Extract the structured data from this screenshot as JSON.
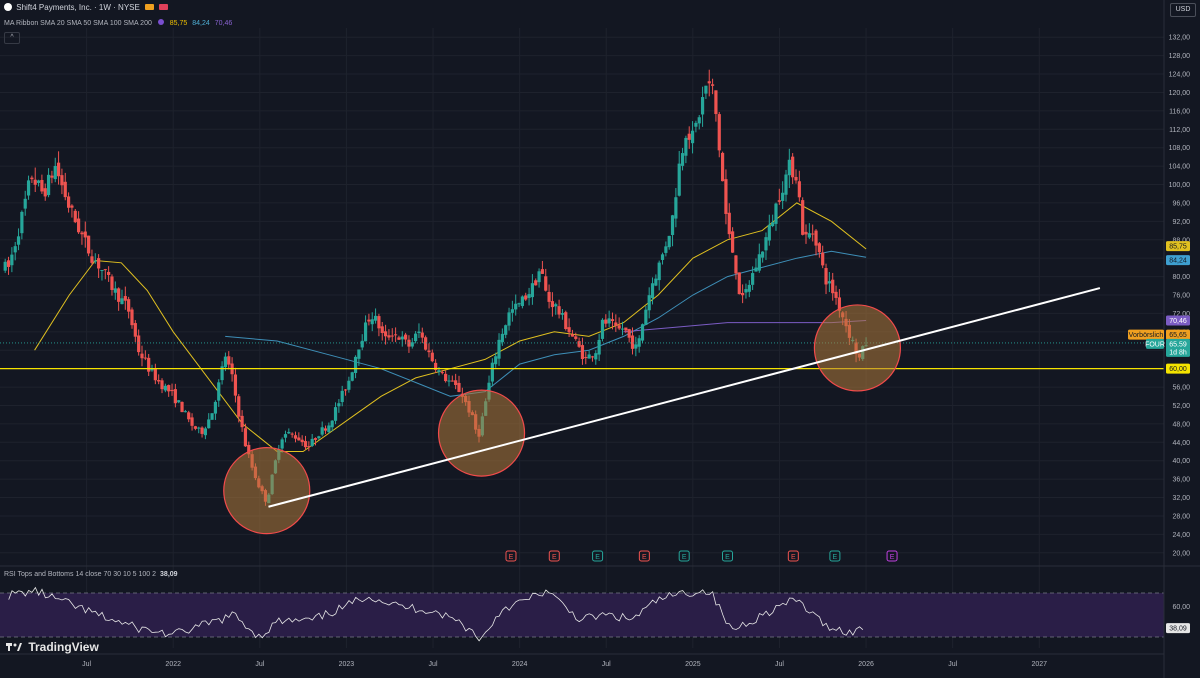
{
  "header": {
    "title": "Shift4 Payments, Inc. · 1W · NYSE",
    "ma_label": "MA Ribbon SMA 20 SMA 50 SMA 100 SMA 200",
    "ma_values": [
      "85,75",
      "84,24",
      "70,46"
    ],
    "collapse_glyph": "^",
    "currency": "USD"
  },
  "rsi": {
    "title": "RSI Tops and Bottoms 14 close 70 30 10 5 100 2",
    "value": "38,09",
    "axis_labels": [
      "60,00",
      "38,09"
    ]
  },
  "brand": {
    "name": "TradingView"
  },
  "colors": {
    "up": "#26a69a",
    "down": "#ef5350",
    "sma_yellow": "#e0c020",
    "sma_blue": "#3e8fb8",
    "sma_purple": "#7b5cc4",
    "support": "#f5e400",
    "trendline": "#ffffff",
    "circle_fill": "#b07a3a",
    "circle_stroke": "#f24b4b",
    "rsi_band": "#2a1e47"
  },
  "chart_data": {
    "type": "candlestick",
    "title": "Shift4 Payments, Inc. · 1W · NYSE",
    "y_ticks": [
      "20,00",
      "24,00",
      "28,00",
      "32,00",
      "36,00",
      "40,00",
      "44,00",
      "48,00",
      "52,00",
      "56,00",
      "60,00",
      "64,00",
      "68,00",
      "72,00",
      "76,00",
      "80,00",
      "84,00",
      "88,00",
      "92,00",
      "96,00",
      "100,00",
      "104,00",
      "108,00",
      "112,00",
      "116,00",
      "120,00",
      "124,00",
      "128,00",
      "132,00"
    ],
    "ylim": [
      18,
      134
    ],
    "x_ticks": [
      {
        "label": "Jul",
        "t": 2021.5
      },
      {
        "label": "2022",
        "t": 2022.0
      },
      {
        "label": "Jul",
        "t": 2022.5
      },
      {
        "label": "2023",
        "t": 2023.0
      },
      {
        "label": "Jul",
        "t": 2023.5
      },
      {
        "label": "2024",
        "t": 2024.0
      },
      {
        "label": "Jul",
        "t": 2024.5
      },
      {
        "label": "2025",
        "t": 2025.0
      },
      {
        "label": "Jul",
        "t": 2025.5
      },
      {
        "label": "2026",
        "t": 2026.0
      },
      {
        "label": "Jul",
        "t": 2026.5
      },
      {
        "label": "2027",
        "t": 2027.0
      }
    ],
    "price_path": [
      [
        2021.05,
        82
      ],
      [
        2021.12,
        92
      ],
      [
        2021.18,
        102
      ],
      [
        2021.25,
        98
      ],
      [
        2021.32,
        104
      ],
      [
        2021.4,
        95
      ],
      [
        2021.46,
        90
      ],
      [
        2021.52,
        85
      ],
      [
        2021.58,
        82
      ],
      [
        2021.66,
        77
      ],
      [
        2021.74,
        73
      ],
      [
        2021.8,
        64
      ],
      [
        2021.86,
        60
      ],
      [
        2021.92,
        57
      ],
      [
        2021.98,
        55
      ],
      [
        2022.04,
        52
      ],
      [
        2022.1,
        48
      ],
      [
        2022.16,
        46
      ],
      [
        2022.22,
        50
      ],
      [
        2022.26,
        56
      ],
      [
        2022.3,
        63
      ],
      [
        2022.34,
        58
      ],
      [
        2022.38,
        50
      ],
      [
        2022.42,
        43
      ],
      [
        2022.46,
        38
      ],
      [
        2022.5,
        34
      ],
      [
        2022.54,
        31
      ],
      [
        2022.58,
        38
      ],
      [
        2022.62,
        45
      ],
      [
        2022.66,
        46
      ],
      [
        2022.72,
        45
      ],
      [
        2022.78,
        43
      ],
      [
        2022.84,
        46
      ],
      [
        2022.9,
        48
      ],
      [
        2022.96,
        53
      ],
      [
        2023.02,
        58
      ],
      [
        2023.06,
        64
      ],
      [
        2023.1,
        68
      ],
      [
        2023.14,
        72
      ],
      [
        2023.18,
        70
      ],
      [
        2023.22,
        66
      ],
      [
        2023.26,
        68
      ],
      [
        2023.3,
        67
      ],
      [
        2023.36,
        65
      ],
      [
        2023.42,
        68
      ],
      [
        2023.48,
        63
      ],
      [
        2023.54,
        59
      ],
      [
        2023.6,
        57
      ],
      [
        2023.66,
        55
      ],
      [
        2023.72,
        50
      ],
      [
        2023.76,
        45
      ],
      [
        2023.8,
        52
      ],
      [
        2023.84,
        60
      ],
      [
        2023.88,
        66
      ],
      [
        2023.94,
        72
      ],
      [
        2024.0,
        74
      ],
      [
        2024.04,
        76
      ],
      [
        2024.08,
        78
      ],
      [
        2024.12,
        82
      ],
      [
        2024.16,
        75
      ],
      [
        2024.2,
        74
      ],
      [
        2024.26,
        70
      ],
      [
        2024.32,
        66
      ],
      [
        2024.38,
        62
      ],
      [
        2024.44,
        64
      ],
      [
        2024.48,
        70
      ],
      [
        2024.52,
        70
      ],
      [
        2024.56,
        68
      ],
      [
        2024.6,
        69
      ],
      [
        2024.64,
        66
      ],
      [
        2024.68,
        64
      ],
      [
        2024.72,
        72
      ],
      [
        2024.76,
        78
      ],
      [
        2024.82,
        84
      ],
      [
        2024.88,
        92
      ],
      [
        2024.92,
        104
      ],
      [
        2024.96,
        112
      ],
      [
        2025.0,
        110
      ],
      [
        2025.04,
        116
      ],
      [
        2025.08,
        122
      ],
      [
        2025.12,
        120
      ],
      [
        2025.16,
        105
      ],
      [
        2025.2,
        90
      ],
      [
        2025.24,
        84
      ],
      [
        2025.28,
        74
      ],
      [
        2025.32,
        78
      ],
      [
        2025.38,
        84
      ],
      [
        2025.44,
        90
      ],
      [
        2025.5,
        98
      ],
      [
        2025.56,
        104
      ],
      [
        2025.6,
        102
      ],
      [
        2025.64,
        88
      ],
      [
        2025.7,
        90
      ],
      [
        2025.76,
        80
      ],
      [
        2025.82,
        76
      ],
      [
        2025.88,
        70
      ],
      [
        2025.92,
        66
      ],
      [
        2025.96,
        62
      ],
      [
        2026.0,
        65.59
      ]
    ],
    "last_price": "65,59",
    "countdown": "1d 8h",
    "symbol_tag": "FOUR",
    "prev_close_tag": "Vorbörslich",
    "prev_close": "65,65",
    "sma_labels": [
      "85,75",
      "84,24",
      "70,46"
    ],
    "support_level": {
      "value": 60,
      "label": "60,00"
    },
    "trendline": [
      [
        2022.55,
        30
      ],
      [
        2027.35,
        77.5
      ]
    ],
    "circles": [
      {
        "t": 2022.54,
        "y": 33.5
      },
      {
        "t": 2023.78,
        "y": 46
      },
      {
        "t": 2025.95,
        "y": 64.5
      }
    ],
    "sma20_path": [
      [
        2021.2,
        64
      ],
      [
        2021.4,
        76
      ],
      [
        2021.55,
        83.5
      ],
      [
        2021.7,
        83
      ],
      [
        2021.85,
        77
      ],
      [
        2022.0,
        68
      ],
      [
        2022.2,
        58
      ],
      [
        2022.4,
        48
      ],
      [
        2022.6,
        42
      ],
      [
        2022.75,
        42
      ],
      [
        2022.9,
        46
      ],
      [
        2023.05,
        50
      ],
      [
        2023.2,
        54
      ],
      [
        2023.4,
        58
      ],
      [
        2023.6,
        60
      ],
      [
        2023.8,
        62
      ],
      [
        2024.0,
        66
      ],
      [
        2024.2,
        68
      ],
      [
        2024.4,
        67
      ],
      [
        2024.6,
        70
      ],
      [
        2024.8,
        76
      ],
      [
        2025.0,
        84
      ],
      [
        2025.2,
        88
      ],
      [
        2025.4,
        90
      ],
      [
        2025.6,
        96
      ],
      [
        2025.8,
        92
      ],
      [
        2026.0,
        86
      ]
    ],
    "sma50_path": [
      [
        2022.3,
        67
      ],
      [
        2022.6,
        66
      ],
      [
        2022.9,
        63
      ],
      [
        2023.2,
        60
      ],
      [
        2023.4,
        57
      ],
      [
        2023.6,
        54
      ],
      [
        2023.8,
        55
      ],
      [
        2024.0,
        61
      ],
      [
        2024.2,
        63
      ],
      [
        2024.4,
        64
      ],
      [
        2024.6,
        67
      ],
      [
        2024.8,
        71
      ],
      [
        2025.0,
        76
      ],
      [
        2025.2,
        80
      ],
      [
        2025.4,
        82
      ],
      [
        2025.6,
        84
      ],
      [
        2025.8,
        85.5
      ],
      [
        2026.0,
        84.2
      ]
    ],
    "sma100_path": [
      [
        2024.6,
        68
      ],
      [
        2024.9,
        69
      ],
      [
        2025.2,
        70
      ],
      [
        2025.5,
        70
      ],
      [
        2025.8,
        70
      ],
      [
        2026.0,
        70.46
      ]
    ],
    "earnings_markers": [
      {
        "t": 2023.95,
        "label": "E",
        "kind": "neg"
      },
      {
        "t": 2024.2,
        "label": "E",
        "kind": "neg"
      },
      {
        "t": 2024.45,
        "label": "E",
        "kind": "pos"
      },
      {
        "t": 2024.72,
        "label": "E",
        "kind": "neg"
      },
      {
        "t": 2024.95,
        "label": "E",
        "kind": "pos"
      },
      {
        "t": 2025.2,
        "label": "E",
        "kind": "pos"
      },
      {
        "t": 2025.58,
        "label": "E",
        "kind": "neg"
      },
      {
        "t": 2025.82,
        "label": "E",
        "kind": "pos"
      },
      {
        "t": 2026.15,
        "label": "E",
        "kind": "future"
      }
    ],
    "rsi_values": [
      [
        2021.05,
        68
      ],
      [
        2021.2,
        72
      ],
      [
        2021.4,
        60
      ],
      [
        2021.6,
        48
      ],
      [
        2021.8,
        38
      ],
      [
        2022.0,
        32
      ],
      [
        2022.2,
        42
      ],
      [
        2022.35,
        50
      ],
      [
        2022.5,
        30
      ],
      [
        2022.6,
        44
      ],
      [
        2022.8,
        45
      ],
      [
        2023.0,
        58
      ],
      [
        2023.12,
        68
      ],
      [
        2023.3,
        58
      ],
      [
        2023.5,
        54
      ],
      [
        2023.65,
        44
      ],
      [
        2023.78,
        28
      ],
      [
        2023.9,
        56
      ],
      [
        2024.05,
        64
      ],
      [
        2024.15,
        72
      ],
      [
        2024.35,
        46
      ],
      [
        2024.5,
        50
      ],
      [
        2024.65,
        46
      ],
      [
        2024.8,
        64
      ],
      [
        2024.95,
        70
      ],
      [
        2025.1,
        72
      ],
      [
        2025.22,
        36
      ],
      [
        2025.35,
        46
      ],
      [
        2025.5,
        58
      ],
      [
        2025.6,
        64
      ],
      [
        2025.75,
        42
      ],
      [
        2025.9,
        34
      ],
      [
        2026.0,
        38.09
      ]
    ],
    "rsi_range": [
      20,
      80
    ],
    "rsi_bands": [
      70,
      30
    ]
  }
}
